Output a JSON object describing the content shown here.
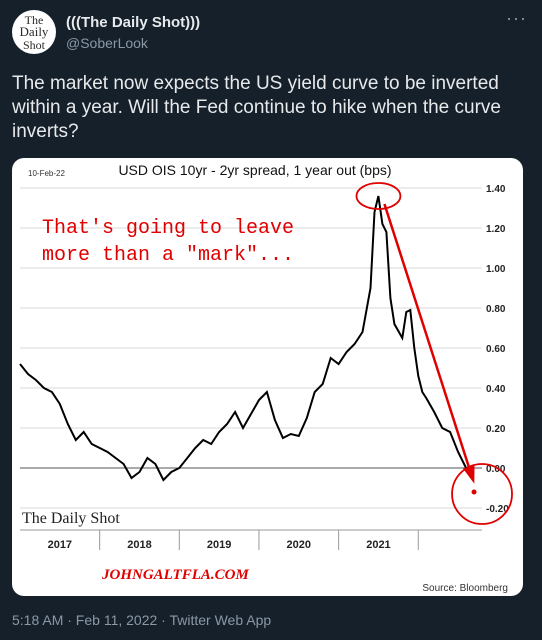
{
  "tweet": {
    "display_name": "(((The Daily Shot)))",
    "handle": "@SoberLook",
    "more_glyph": "···",
    "avatar_text": [
      "The",
      "Daily",
      "Shot"
    ],
    "text": "The market now expects the US yield curve to be inverted within a year. Will the Fed continue to hike when the curve inverts?",
    "footer": "5:18 AM · Feb 11, 2022 · Twitter Web App"
  },
  "chart_data": {
    "type": "line",
    "title": "USD OIS 10yr - 2yr spread, 1 year out (bps)",
    "date_label": "10-Feb-22",
    "annotation": "That's going to leave more than a \"mark\"...",
    "annotation_lines": [
      "That's going to leave",
      "more than a \"mark\"..."
    ],
    "watermark": "JOHNGALTFLA.COM",
    "brand": "The Daily Shot",
    "source": "Source: Bloomberg",
    "ylim": [
      -0.3,
      1.45
    ],
    "y_ticks": [
      "1.40",
      "1.20",
      "1.00",
      "0.80",
      "0.60",
      "0.40",
      "0.20",
      "0.00",
      "-0.20"
    ],
    "x_tick_labels": [
      "2017",
      "2018",
      "2019",
      "2020",
      "2021"
    ],
    "grid": true,
    "accent_color": "#e00000",
    "series": [
      {
        "x": [
          2016.5,
          2016.6,
          2016.7,
          2016.8,
          2016.9,
          2017.0,
          2017.1,
          2017.2,
          2017.3,
          2017.4,
          2017.5,
          2017.6,
          2017.7,
          2017.8,
          2017.9,
          2018.0,
          2018.1,
          2018.2,
          2018.3,
          2018.4,
          2018.5,
          2018.6,
          2018.7,
          2018.8,
          2018.9,
          2019.0,
          2019.1,
          2019.2,
          2019.3,
          2019.4,
          2019.5,
          2019.6,
          2019.7,
          2019.8,
          2019.9,
          2020.0,
          2020.1,
          2020.2,
          2020.3,
          2020.4,
          2020.5,
          2020.6,
          2020.7,
          2020.8,
          2020.9,
          2020.95,
          2021.0,
          2021.05,
          2021.1,
          2021.15,
          2021.2,
          2021.3,
          2021.35,
          2021.4,
          2021.45,
          2021.5,
          2021.55,
          2021.6,
          2021.7,
          2021.8,
          2021.9,
          2022.0,
          2022.1
        ],
        "values": [
          0.52,
          0.47,
          0.44,
          0.4,
          0.38,
          0.32,
          0.22,
          0.14,
          0.18,
          0.12,
          0.1,
          0.08,
          0.05,
          0.02,
          -0.05,
          -0.02,
          0.05,
          0.02,
          -0.06,
          -0.02,
          0.0,
          0.05,
          0.1,
          0.14,
          0.12,
          0.18,
          0.22,
          0.28,
          0.2,
          0.27,
          0.34,
          0.38,
          0.24,
          0.15,
          0.17,
          0.16,
          0.25,
          0.38,
          0.42,
          0.55,
          0.52,
          0.58,
          0.62,
          0.68,
          0.9,
          1.28,
          1.36,
          1.22,
          1.18,
          0.85,
          0.72,
          0.65,
          0.78,
          0.79,
          0.6,
          0.46,
          0.38,
          0.35,
          0.28,
          0.2,
          0.18,
          0.08,
          0.0
        ]
      }
    ],
    "projected_point": {
      "x": 2022.2,
      "value": -0.12
    }
  }
}
